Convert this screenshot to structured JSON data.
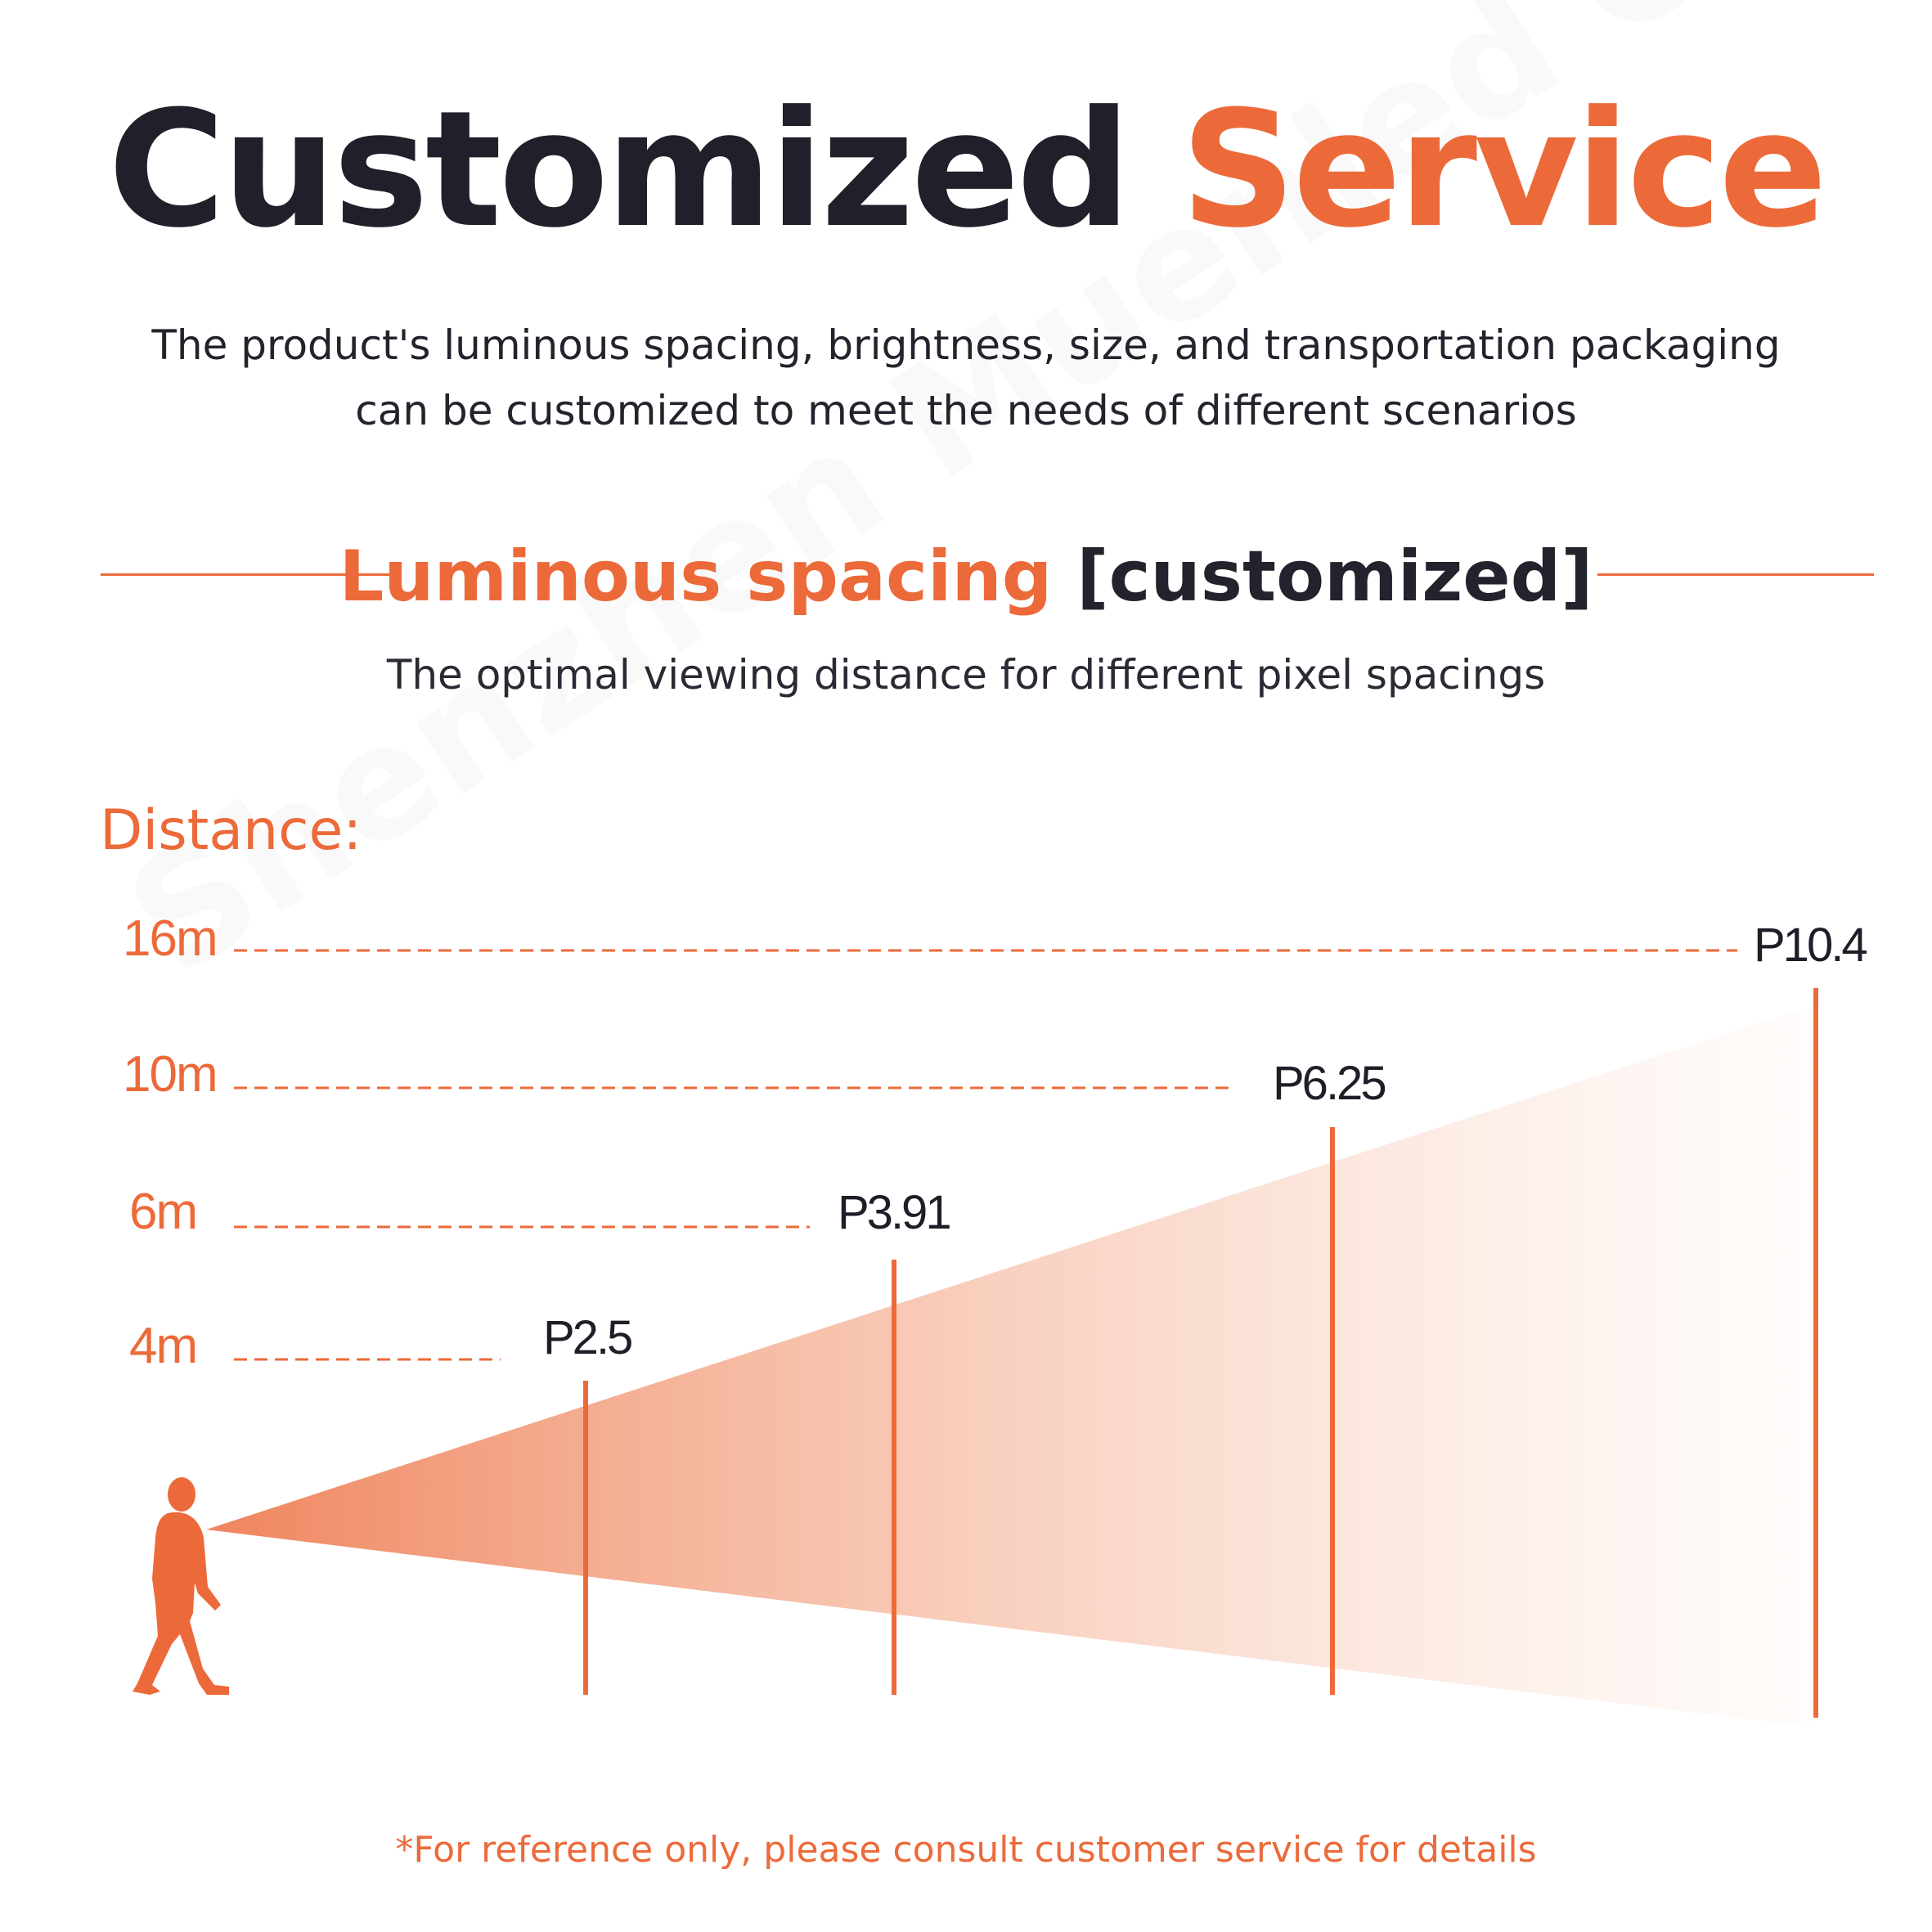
{
  "header": {
    "title_part1": "Customized",
    "title_part2": "Service",
    "subtitle_line1": "The product's luminous spacing, brightness, size, and transportation packaging",
    "subtitle_line2": "can be customized to meet the needs of different scenarios"
  },
  "section": {
    "title_accent": "Luminous spacing",
    "title_bracket": "[customized]",
    "subtitle": "The optimal viewing distance for different pixel spacings"
  },
  "diagram": {
    "distance_label": "Distance:",
    "items": [
      {
        "distance": "4m",
        "pitch": "P2.5"
      },
      {
        "distance": "6m",
        "pitch": "P3.91"
      },
      {
        "distance": "10m",
        "pitch": "P6.25"
      },
      {
        "distance": "16m",
        "pitch": "P10.4"
      }
    ]
  },
  "footnote": "*For reference only, please consult customer service for details",
  "watermark": "Shenzhen Muenled Co.,Ltd.",
  "colors": {
    "accent": "#ec6a3a",
    "dark": "#20202a"
  }
}
